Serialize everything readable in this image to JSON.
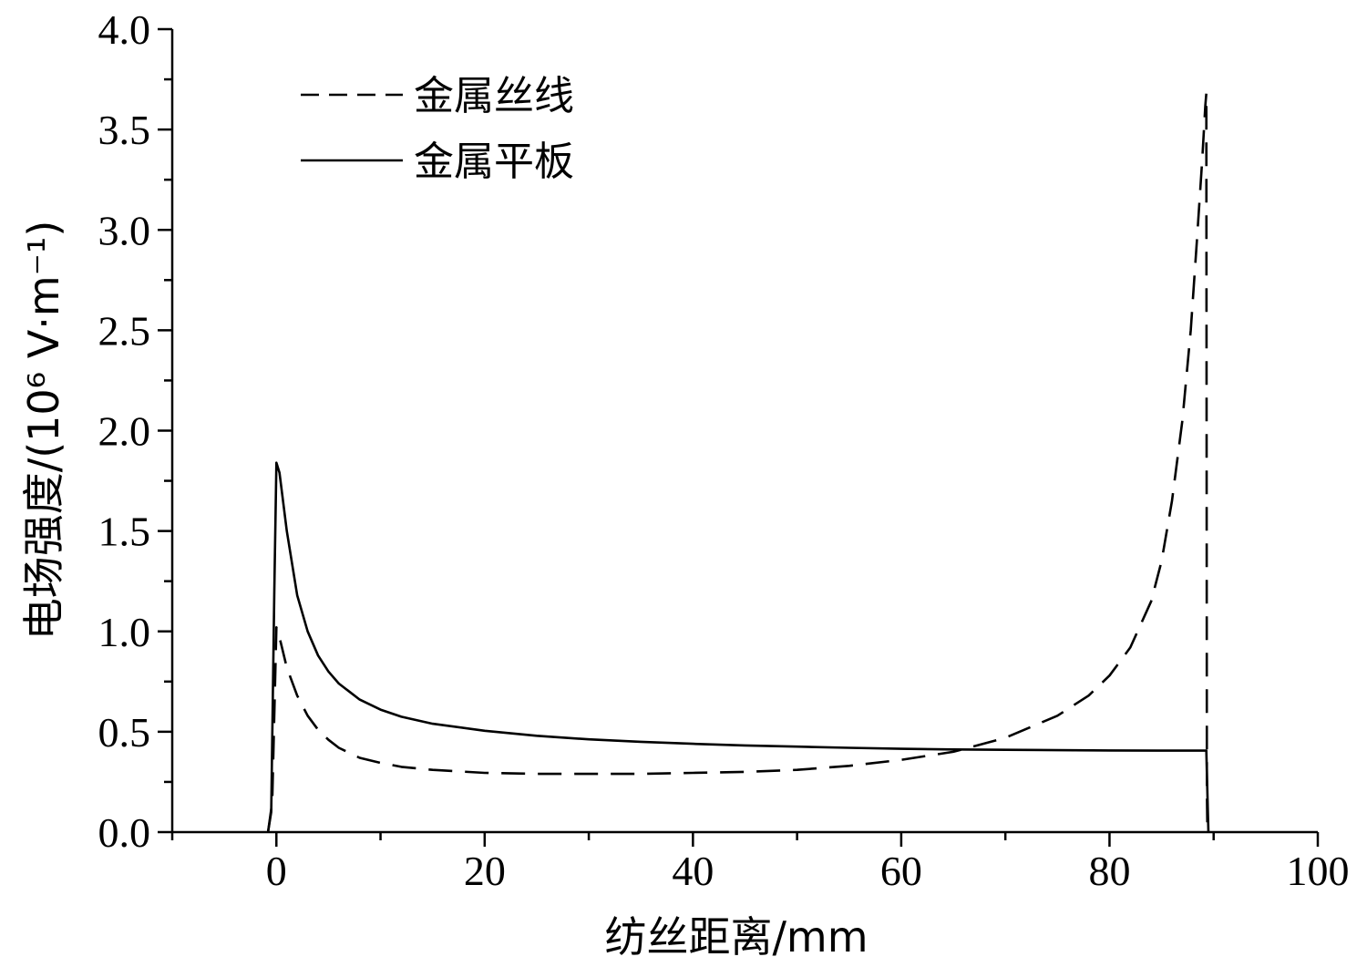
{
  "chart_data": {
    "type": "line",
    "xlabel": "纺丝距离/mm",
    "ylabel": "电场强度/(10⁶ V·m⁻¹)",
    "xlim": [
      -10,
      100
    ],
    "ylim": [
      0,
      4.0
    ],
    "x_ticks": [
      0,
      20,
      40,
      60,
      80,
      100
    ],
    "x_tick_labels": [
      "0",
      "20",
      "40",
      "60",
      "80",
      "100"
    ],
    "y_ticks": [
      0,
      0.5,
      1.0,
      1.5,
      2.0,
      2.5,
      3.0,
      3.5,
      4.0
    ],
    "y_tick_labels": [
      "0.0",
      "0.5",
      "1.0",
      "1.5",
      "2.0",
      "2.5",
      "3.0",
      "3.5",
      "4.0"
    ],
    "grid": false,
    "legend_position": "top-left",
    "series": [
      {
        "name": "金属丝线",
        "style": "dashed",
        "color": "#000000",
        "points": [
          [
            -0.8,
            0
          ],
          [
            -0.4,
            0.15
          ],
          [
            0,
            1.02
          ],
          [
            0.4,
            0.95
          ],
          [
            1,
            0.82
          ],
          [
            2,
            0.68
          ],
          [
            3,
            0.58
          ],
          [
            4,
            0.51
          ],
          [
            5,
            0.46
          ],
          [
            6,
            0.42
          ],
          [
            8,
            0.37
          ],
          [
            10,
            0.345
          ],
          [
            12,
            0.325
          ],
          [
            15,
            0.31
          ],
          [
            20,
            0.295
          ],
          [
            25,
            0.29
          ],
          [
            30,
            0.29
          ],
          [
            35,
            0.29
          ],
          [
            40,
            0.295
          ],
          [
            45,
            0.3
          ],
          [
            50,
            0.31
          ],
          [
            55,
            0.33
          ],
          [
            60,
            0.36
          ],
          [
            65,
            0.4
          ],
          [
            70,
            0.47
          ],
          [
            75,
            0.58
          ],
          [
            78,
            0.68
          ],
          [
            80,
            0.78
          ],
          [
            82,
            0.92
          ],
          [
            84,
            1.15
          ],
          [
            85,
            1.35
          ],
          [
            86,
            1.65
          ],
          [
            87,
            2.05
          ],
          [
            87.8,
            2.5
          ],
          [
            88.4,
            2.95
          ],
          [
            88.9,
            3.35
          ],
          [
            89.2,
            3.62
          ],
          [
            89.3,
            3.68
          ],
          [
            89.35,
            0.2
          ],
          [
            89.4,
            0
          ]
        ]
      },
      {
        "name": "金属平板",
        "style": "solid",
        "color": "#000000",
        "points": [
          [
            -0.8,
            0
          ],
          [
            -0.5,
            0.1
          ],
          [
            -0.2,
            1.2
          ],
          [
            0,
            1.84
          ],
          [
            0.3,
            1.79
          ],
          [
            1,
            1.5
          ],
          [
            2,
            1.18
          ],
          [
            3,
            1.0
          ],
          [
            4,
            0.88
          ],
          [
            5,
            0.8
          ],
          [
            6,
            0.74
          ],
          [
            8,
            0.66
          ],
          [
            10,
            0.61
          ],
          [
            12,
            0.575
          ],
          [
            15,
            0.54
          ],
          [
            20,
            0.505
          ],
          [
            25,
            0.48
          ],
          [
            30,
            0.462
          ],
          [
            35,
            0.45
          ],
          [
            40,
            0.44
          ],
          [
            45,
            0.432
          ],
          [
            50,
            0.426
          ],
          [
            55,
            0.42
          ],
          [
            60,
            0.415
          ],
          [
            65,
            0.412
          ],
          [
            70,
            0.41
          ],
          [
            75,
            0.408
          ],
          [
            80,
            0.407
          ],
          [
            85,
            0.406
          ],
          [
            89.3,
            0.406
          ],
          [
            89.45,
            0.1
          ],
          [
            89.5,
            0
          ]
        ]
      }
    ]
  }
}
